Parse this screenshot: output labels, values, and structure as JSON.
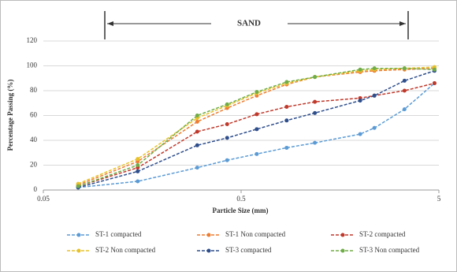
{
  "chart_data": {
    "type": "line",
    "annotation": "SAND",
    "xlabel": "Particle Size (mm)",
    "ylabel": "Percentage Passing (%)",
    "x": [
      0.075,
      0.15,
      0.3,
      0.425,
      0.6,
      0.85,
      1.18,
      2,
      2.36,
      3.35,
      4.75
    ],
    "xlim": [
      0.05,
      5
    ],
    "xticks": [
      0.05,
      0.5,
      5
    ],
    "xlog": true,
    "ylim": [
      0,
      120
    ],
    "yticks": [
      0,
      20,
      40,
      60,
      80,
      100,
      120
    ],
    "grid": true,
    "legend": "bottom",
    "series": [
      {
        "name": "ST-1 compacted",
        "color": "#5b9bd5",
        "values": [
          2,
          7,
          18,
          24,
          29,
          34,
          38,
          45,
          50,
          65,
          86
        ]
      },
      {
        "name": "ST-1 Non compacted",
        "color": "#ed7d31",
        "values": [
          4,
          23,
          55,
          66,
          76,
          85,
          91,
          95,
          96,
          97,
          98
        ]
      },
      {
        "name": "ST-2 compacted",
        "color": "#c0392b",
        "values": [
          3,
          18,
          47,
          53,
          61,
          67,
          71,
          74,
          76,
          80,
          86
        ]
      },
      {
        "name": "ST-2 Non compacted",
        "color": "#e8c22a",
        "values": [
          5,
          25,
          58,
          68,
          78,
          86,
          91,
          96,
          97,
          98,
          99
        ]
      },
      {
        "name": "ST-3 compacted",
        "color": "#2e4e8c",
        "values": [
          2,
          15,
          36,
          42,
          49,
          56,
          62,
          72,
          76,
          88,
          96
        ]
      },
      {
        "name": "ST-3 Non compacted",
        "color": "#70ad47",
        "values": [
          3,
          20,
          60,
          69,
          79,
          87,
          91,
          97,
          98,
          98,
          97
        ]
      }
    ]
  }
}
